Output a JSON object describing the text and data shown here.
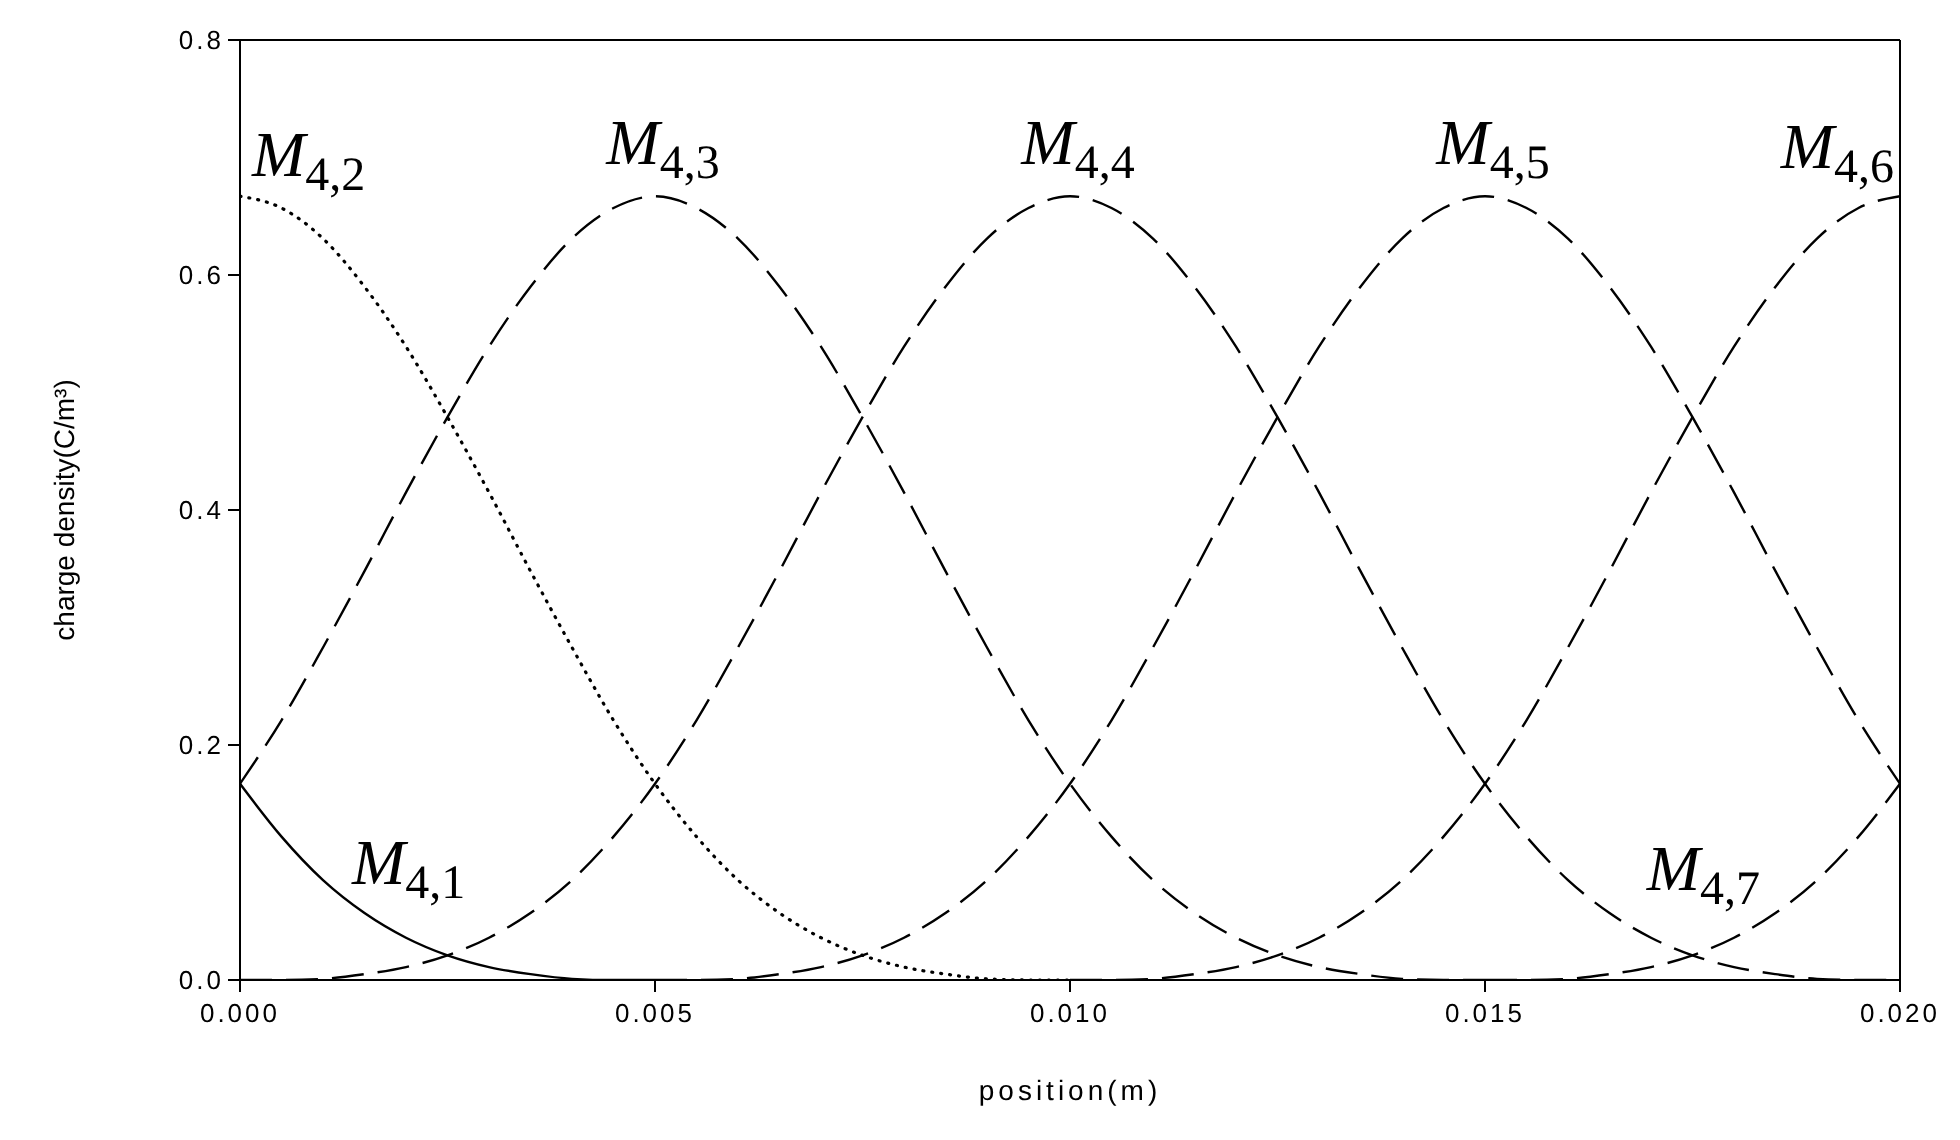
{
  "chart_data": {
    "type": "line",
    "xlabel": "position(m)",
    "ylabel": "charge density(C/m³)",
    "xlim": [
      0,
      0.02
    ],
    "ylim": [
      0,
      0.8
    ],
    "xticks": [
      {
        "value": 0,
        "label": "0.000"
      },
      0.005,
      {
        "value": 0.01,
        "label": "0.010"
      },
      0.015,
      {
        "value": 0.02,
        "label": "0.020"
      }
    ],
    "yticks": [
      {
        "value": 0,
        "label": "0.0"
      },
      0.2,
      0.4,
      0.6,
      0.8
    ],
    "marker": "none",
    "x": [
      0,
      0.0005,
      0.001,
      0.0015,
      0.002,
      0.0025,
      0.003,
      0.0035,
      0.004,
      0.0045,
      0.005,
      0.0055,
      0.006,
      0.0065,
      0.007,
      0.0075,
      0.008,
      0.0085,
      0.009,
      0.0095,
      0.01,
      0.0105,
      0.011,
      0.0115,
      0.012,
      0.0125,
      0.013,
      0.0135,
      0.014,
      0.0145,
      0.015,
      0.0155,
      0.016,
      0.0165,
      0.017,
      0.0175,
      0.018,
      0.0185,
      0.019,
      0.0195,
      0.02
    ],
    "series": [
      {
        "name": "M$_{4,1}$",
        "color": "#000000",
        "line_style": "solid",
        "values": [
          0.167,
          0.122,
          0.085,
          0.057,
          0.036,
          0.021,
          0.011,
          0.005,
          0.001,
          0,
          0,
          null,
          null,
          null,
          null,
          null,
          null,
          null,
          null,
          null,
          null,
          null,
          null,
          null,
          null,
          null,
          null,
          null,
          null,
          null,
          null,
          null,
          null,
          null,
          null,
          null,
          null,
          null,
          null,
          null,
          null
        ]
      },
      {
        "name": "M$_{4,2}$",
        "color": "#000000",
        "line_style": "dotted",
        "values": [
          0.667,
          0.657,
          0.631,
          0.59,
          0.539,
          0.479,
          0.415,
          0.348,
          0.283,
          0.221,
          0.167,
          0.122,
          0.085,
          0.057,
          0.036,
          0.021,
          0.011,
          0.005,
          0.001,
          0,
          0,
          null,
          null,
          null,
          null,
          null,
          null,
          null,
          null,
          null,
          null,
          null,
          null,
          null,
          null,
          null,
          null,
          null,
          null,
          null,
          null
        ]
      },
      {
        "name": "M$_{4,3}$",
        "color": "#000000",
        "line_style": "dashed",
        "values": [
          0.167,
          0.221,
          0.283,
          0.348,
          0.415,
          0.479,
          0.539,
          0.59,
          0.631,
          0.657,
          0.667,
          0.657,
          0.631,
          0.59,
          0.539,
          0.479,
          0.415,
          0.348,
          0.283,
          0.221,
          0.167,
          0.122,
          0.085,
          0.057,
          0.036,
          0.021,
          0.011,
          0.005,
          0.001,
          0,
          0,
          null,
          null,
          null,
          null,
          null,
          null,
          null,
          null,
          null,
          null
        ]
      },
      {
        "name": "M$_{4,4}$",
        "color": "#000000",
        "line_style": "dashed",
        "values": [
          0,
          0,
          0.001,
          0.005,
          0.011,
          0.021,
          0.036,
          0.057,
          0.085,
          0.122,
          0.167,
          0.221,
          0.283,
          0.348,
          0.415,
          0.479,
          0.539,
          0.59,
          0.631,
          0.657,
          0.667,
          0.657,
          0.631,
          0.59,
          0.539,
          0.479,
          0.415,
          0.348,
          0.283,
          0.221,
          0.167,
          0.122,
          0.085,
          0.057,
          0.036,
          0.021,
          0.011,
          0.005,
          0.001,
          0,
          0
        ]
      },
      {
        "name": "M$_{4,5}$",
        "color": "#000000",
        "line_style": "dashed",
        "values": [
          null,
          null,
          null,
          null,
          null,
          null,
          null,
          null,
          null,
          null,
          0,
          0,
          0.001,
          0.005,
          0.011,
          0.021,
          0.036,
          0.057,
          0.085,
          0.122,
          0.167,
          0.221,
          0.283,
          0.348,
          0.415,
          0.479,
          0.539,
          0.59,
          0.631,
          0.657,
          0.667,
          0.657,
          0.631,
          0.59,
          0.539,
          0.479,
          0.415,
          0.348,
          0.283,
          0.221,
          0.167
        ]
      },
      {
        "name": "M$_{4,6}$",
        "color": "#000000",
        "line_style": "dashed",
        "values": [
          null,
          null,
          null,
          null,
          null,
          null,
          null,
          null,
          null,
          null,
          null,
          null,
          null,
          null,
          null,
          null,
          null,
          null,
          null,
          null,
          0,
          0,
          0.001,
          0.005,
          0.011,
          0.021,
          0.036,
          0.057,
          0.085,
          0.122,
          0.167,
          0.221,
          0.283,
          0.348,
          0.415,
          0.479,
          0.539,
          0.59,
          0.631,
          0.657,
          0.667
        ]
      },
      {
        "name": "M$_{4,7}$",
        "color": "#000000",
        "line_style": "dashed",
        "values": [
          null,
          null,
          null,
          null,
          null,
          null,
          null,
          null,
          null,
          null,
          null,
          null,
          null,
          null,
          null,
          null,
          null,
          null,
          null,
          null,
          null,
          null,
          null,
          null,
          null,
          null,
          null,
          null,
          null,
          null,
          0,
          0,
          0.001,
          0.005,
          0.011,
          0.021,
          0.036,
          0.057,
          0.085,
          0.122,
          0.167
        ]
      }
    ]
  }
}
